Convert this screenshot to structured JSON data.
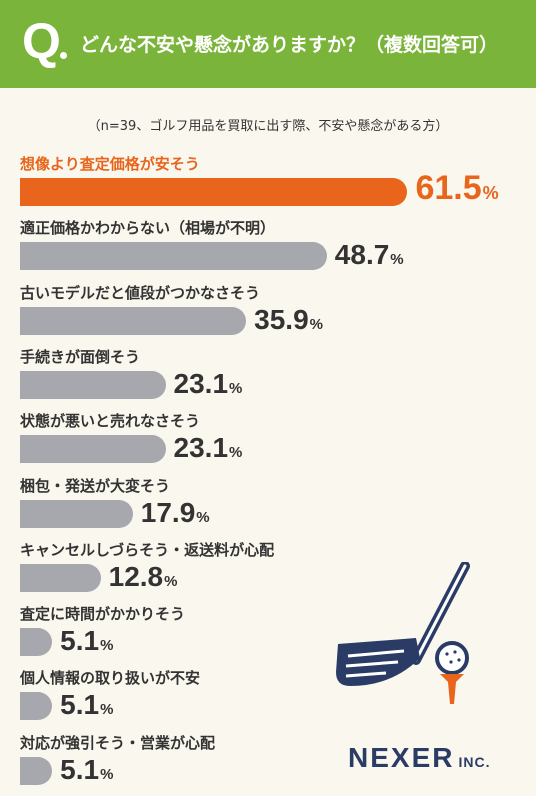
{
  "header": {
    "q_mark": "Q",
    "question": "どんな不安や懸念がありますか？（複数回答可）"
  },
  "sample_note": "（n=39、ゴルフ用品を買取に出す際、不安や懸念がある方）",
  "chart_data": {
    "type": "bar",
    "orientation": "horizontal",
    "categories": [
      "想像より査定価格が安そう",
      "適正価格かわからない（相場が不明）",
      "古いモデルだと値段がつかなさそう",
      "手続きが面倒そう",
      "状態が悪いと売れなさそう",
      "梱包・発送が大変そう",
      "キャンセルしづらそう・返送料が心配",
      "査定に時間がかかりそう",
      "個人情報の取り扱いが不安",
      "対応が強引そう・営業が心配"
    ],
    "values": [
      61.5,
      48.7,
      35.9,
      23.1,
      23.1,
      17.9,
      12.8,
      5.1,
      5.1,
      5.1
    ],
    "value_labels": [
      "61.5",
      "48.7",
      "35.9",
      "23.1",
      "23.1",
      "17.9",
      "12.8",
      "5.1",
      "5.1",
      "5.1"
    ],
    "unit": "%",
    "highlight_index": 0,
    "colors": {
      "highlight": "#e8651b",
      "default": "#a7a8ad"
    },
    "xlim": [
      0,
      100
    ]
  },
  "logo": {
    "main": "NEXER",
    "sub": "INC."
  },
  "colors": {
    "header": "#7bb43a",
    "background": "#faf7ef",
    "logo": "#2a3c66"
  },
  "icons": [
    "golf-club-icon",
    "golf-ball-on-tee-icon"
  ]
}
